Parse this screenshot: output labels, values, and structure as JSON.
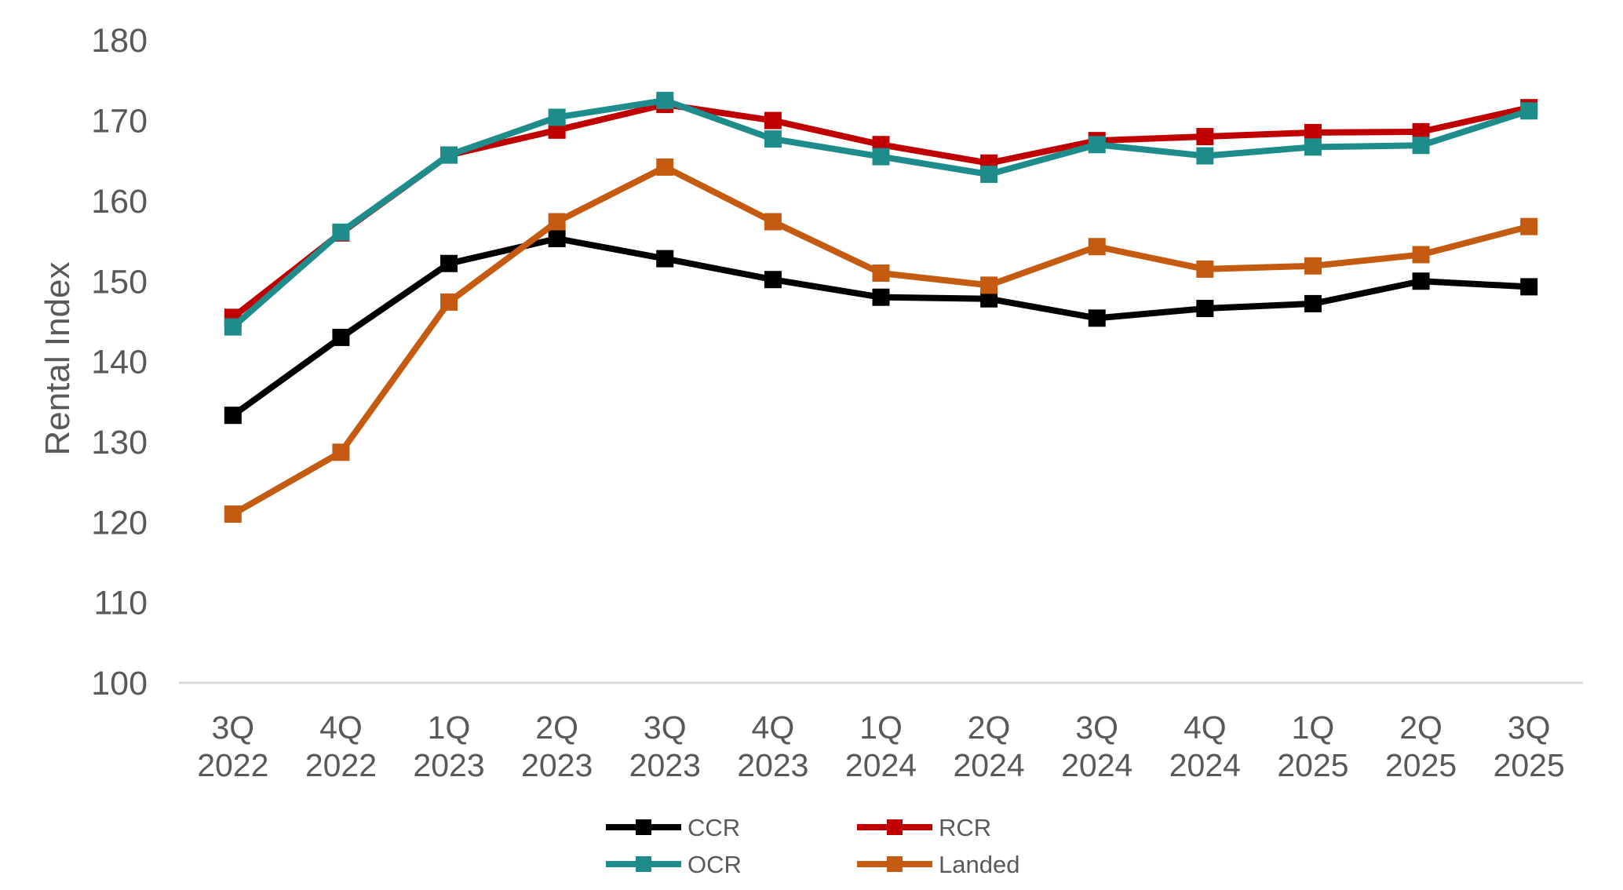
{
  "chart_data": {
    "type": "line",
    "title": "",
    "ylabel": "Rental Index",
    "xlabel": "",
    "ylim": [
      100,
      180
    ],
    "yticks": [
      100,
      110,
      120,
      130,
      140,
      150,
      160,
      170,
      180
    ],
    "grid": false,
    "marker": "square",
    "legend_position": "bottom-center",
    "axis_line_color": "#D9D9D9",
    "text_color": "#595959",
    "background_color": "#FFFFFF",
    "categories": [
      "3Q 2022",
      "4Q 2022",
      "1Q 2023",
      "2Q 2023",
      "3Q 2023",
      "4Q 2023",
      "1Q 2024",
      "2Q 2024",
      "3Q 2024",
      "4Q 2024",
      "1Q 2025",
      "2Q 2025",
      "3Q 2025"
    ],
    "series": [
      {
        "name": "CCR",
        "color": "#000000",
        "values": [
          133.3,
          143.0,
          152.2,
          155.3,
          152.8,
          150.2,
          148.0,
          147.8,
          145.4,
          146.6,
          147.2,
          150.0,
          149.3
        ]
      },
      {
        "name": "RCR",
        "color": "#C00000",
        "values": [
          145.5,
          156.0,
          165.7,
          168.8,
          172.0,
          170.0,
          167.0,
          164.7,
          167.5,
          168.0,
          168.5,
          168.6,
          171.6
        ]
      },
      {
        "name": "OCR",
        "color": "#1F8C8C",
        "values": [
          144.3,
          156.1,
          165.7,
          170.4,
          172.5,
          167.7,
          165.5,
          163.3,
          167.0,
          165.6,
          166.7,
          166.9,
          171.2
        ]
      },
      {
        "name": "Landed",
        "color": "#C55A11",
        "values": [
          121.0,
          128.7,
          147.4,
          157.4,
          164.2,
          157.4,
          151.0,
          149.5,
          154.3,
          151.5,
          151.9,
          153.3,
          156.8
        ]
      }
    ],
    "legend_rows": [
      [
        "CCR",
        "RCR"
      ],
      [
        "OCR",
        "Landed"
      ]
    ]
  }
}
